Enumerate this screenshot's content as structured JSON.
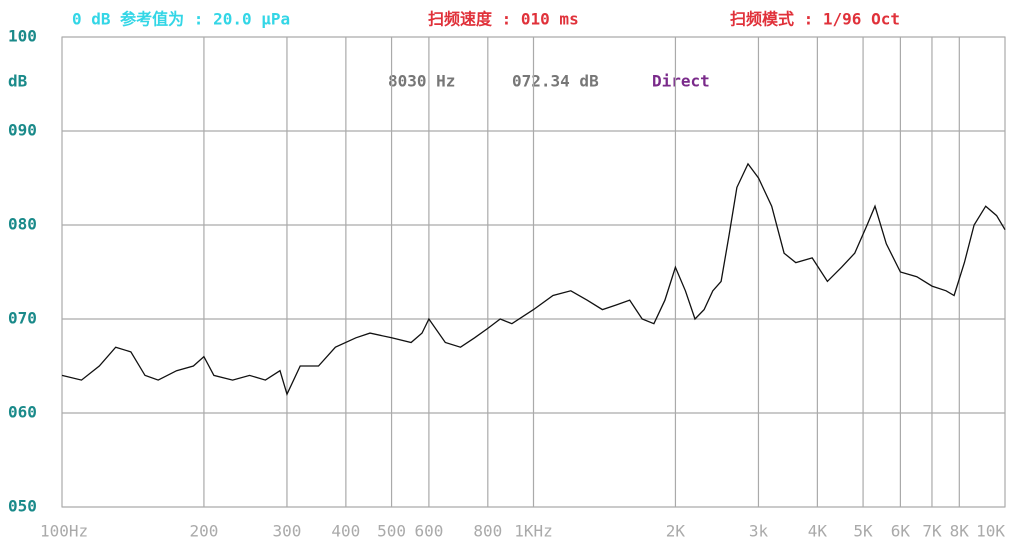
{
  "chart_data": {
    "type": "line",
    "annotations": [
      "0 dB 参考值为 : 20.0 μPa",
      "扫频速度 : 010 ms",
      "扫频模式 : 1/96 Oct",
      "8030 Hz",
      "072.34 dB",
      "Direct"
    ],
    "y_label": "dB",
    "x_scale": "log",
    "grid": true,
    "xlim": [
      100,
      10000
    ],
    "ylim": [
      50,
      100
    ],
    "xticks": [
      {
        "value": 100,
        "label": "100Hz"
      },
      200,
      300,
      400,
      500,
      600,
      800,
      {
        "value": 1000,
        "label": "1KHz"
      },
      {
        "value": 2000,
        "label": "2K"
      },
      {
        "value": 3000,
        "label": "3k"
      },
      {
        "value": 4000,
        "label": "4K"
      },
      {
        "value": 5000,
        "label": "5K"
      },
      {
        "value": 6000,
        "label": "6K"
      },
      {
        "value": 7000,
        "label": "7K"
      },
      {
        "value": 8000,
        "label": "8K"
      },
      {
        "value": 10000,
        "label": "10K"
      }
    ],
    "yticks": [
      {
        "value": 50,
        "label": "050"
      },
      {
        "value": 60,
        "label": "060"
      },
      {
        "value": 70,
        "label": "070"
      },
      {
        "value": 80,
        "label": "080"
      },
      {
        "value": 90,
        "label": "090"
      },
      100
    ],
    "x": [
      100,
      110,
      120,
      130,
      140,
      150,
      160,
      175,
      190,
      200,
      210,
      230,
      250,
      270,
      290,
      300,
      320,
      350,
      380,
      420,
      450,
      500,
      550,
      580,
      600,
      650,
      700,
      750,
      800,
      850,
      900,
      1000,
      1100,
      1200,
      1300,
      1400,
      1500,
      1600,
      1700,
      1800,
      1900,
      2000,
      2100,
      2200,
      2300,
      2400,
      2500,
      2600,
      2700,
      2850,
      3000,
      3200,
      3400,
      3600,
      3900,
      4200,
      4500,
      4800,
      5100,
      5300,
      5600,
      6000,
      6500,
      7000,
      7500,
      7800,
      8200,
      8600,
      9100,
      9600,
      10000
    ],
    "series": [
      {
        "color": "#111111",
        "values": [
          64,
          63.5,
          65,
          67,
          66.5,
          64,
          63.5,
          64.5,
          65,
          66,
          64,
          63.5,
          64,
          63.5,
          64.5,
          62,
          65,
          65,
          67,
          68,
          68.5,
          68,
          67.5,
          68.5,
          70,
          67.5,
          67,
          68,
          69,
          70,
          69.5,
          71,
          72.5,
          73,
          72,
          71,
          71.5,
          72,
          70,
          69.5,
          72,
          75.5,
          73,
          70,
          71,
          73,
          74,
          79,
          84,
          86.5,
          85,
          82,
          77,
          76,
          76.5,
          74,
          75.5,
          77,
          80,
          82,
          78,
          75,
          74.5,
          73.5,
          73,
          72.5,
          76,
          80,
          82,
          81,
          79.5
        ]
      }
    ]
  }
}
